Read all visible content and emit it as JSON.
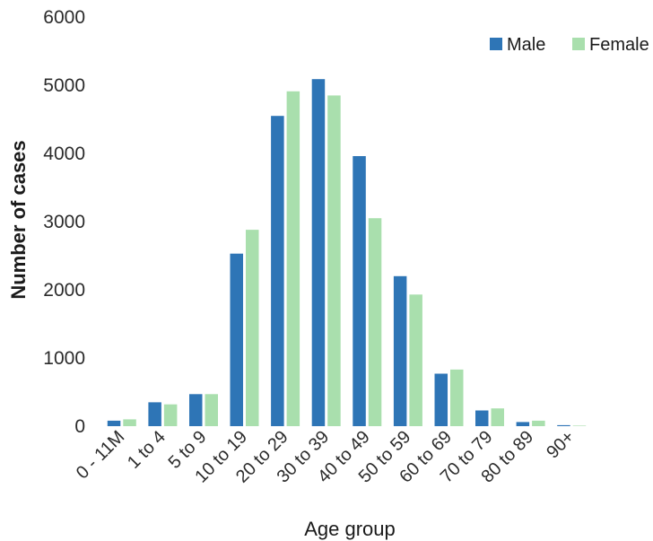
{
  "chart_data": {
    "type": "bar",
    "title": "",
    "xlabel": "Age group",
    "ylabel": "Number of cases",
    "ylim": [
      0,
      6000
    ],
    "yticks": [
      0,
      1000,
      2000,
      3000,
      4000,
      5000,
      6000
    ],
    "grid": false,
    "legend_position": "top-right",
    "categories": [
      "0 - 11M",
      "1 to 4",
      "5 to 9",
      "10 to 19",
      "20 to 29",
      "30 to 39",
      "40 to 49",
      "50 to 59",
      "60 to 69",
      "70 to 79",
      "80 to 89",
      "90+"
    ],
    "series": [
      {
        "name": "Male",
        "color": "#2e75b6",
        "values": [
          80,
          350,
          470,
          2530,
          4550,
          5090,
          3960,
          2200,
          770,
          230,
          60,
          15
        ]
      },
      {
        "name": "Female",
        "color": "#a9dfad",
        "values": [
          100,
          320,
          470,
          2880,
          4910,
          4850,
          3050,
          1930,
          830,
          260,
          80,
          8
        ]
      }
    ]
  }
}
